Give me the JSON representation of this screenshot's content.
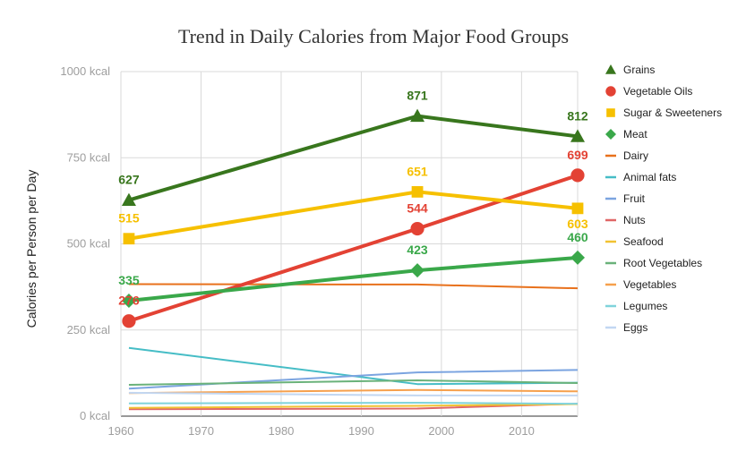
{
  "chart_data": {
    "type": "line",
    "title": "Trend in Daily Calories from Major Food Groups",
    "xlabel": "",
    "ylabel": "Calories per Person per Day",
    "x": [
      1961,
      1997,
      2017
    ],
    "xlim": [
      1960,
      2017
    ],
    "x_ticks": [
      "1960",
      "1970",
      "1980",
      "1990",
      "2000",
      "2010"
    ],
    "x_tick_values": [
      1960,
      1970,
      1980,
      1990,
      2000,
      2010
    ],
    "ylim": [
      0,
      1000
    ],
    "y_ticks": [
      "0 kcal",
      "250 kcal",
      "500 kcal",
      "750 kcal",
      "1000 kcal"
    ],
    "y_tick_values": [
      0,
      250,
      500,
      750,
      1000
    ],
    "grid": true,
    "legend_position": "right",
    "series": [
      {
        "name": "Grains",
        "values": [
          627,
          871,
          812
        ],
        "color": "#38761d",
        "marker": "triangle",
        "emphasis": true,
        "labels": [
          "627",
          "871",
          "812"
        ]
      },
      {
        "name": "Vegetable Oils",
        "values": [
          276,
          544,
          699
        ],
        "color": "#e34234",
        "marker": "circle",
        "emphasis": true,
        "labels": [
          "276",
          "544",
          "699"
        ]
      },
      {
        "name": "Sugar & Sweeteners",
        "values": [
          515,
          651,
          603
        ],
        "color": "#f6c000",
        "marker": "square",
        "emphasis": true,
        "labels": [
          "515",
          "651",
          "603"
        ]
      },
      {
        "name": "Meat",
        "values": [
          335,
          423,
          460
        ],
        "color": "#3aa84a",
        "marker": "diamond",
        "emphasis": true,
        "labels": [
          "335",
          "423",
          "460"
        ]
      },
      {
        "name": "Dairy",
        "values": [
          383,
          382,
          371
        ],
        "color": "#e8711c",
        "marker": "none",
        "emphasis": false
      },
      {
        "name": "Animal fats",
        "values": [
          198,
          93,
          97
        ],
        "color": "#46bdc6",
        "marker": "none",
        "emphasis": false
      },
      {
        "name": "Fruit",
        "values": [
          80,
          127,
          134
        ],
        "color": "#7ba4e0",
        "marker": "none",
        "emphasis": false
      },
      {
        "name": "Nuts",
        "values": [
          20,
          22,
          36
        ],
        "color": "#e06666",
        "marker": "none",
        "emphasis": false
      },
      {
        "name": "Seafood",
        "values": [
          24,
          30,
          35
        ],
        "color": "#f1c232",
        "marker": "none",
        "emphasis": false
      },
      {
        "name": "Root Vegetables",
        "values": [
          91,
          104,
          96
        ],
        "color": "#6ab27a",
        "marker": "none",
        "emphasis": false
      },
      {
        "name": "Vegetables",
        "values": [
          67,
          76,
          72
        ],
        "color": "#f6a04d",
        "marker": "none",
        "emphasis": false
      },
      {
        "name": "Legumes",
        "values": [
          37,
          39,
          36
        ],
        "color": "#7fd3db",
        "marker": "none",
        "emphasis": false
      },
      {
        "name": "Eggs",
        "values": [
          68,
          60,
          60
        ],
        "color": "#c2d7f2",
        "marker": "none",
        "emphasis": false
      }
    ]
  }
}
